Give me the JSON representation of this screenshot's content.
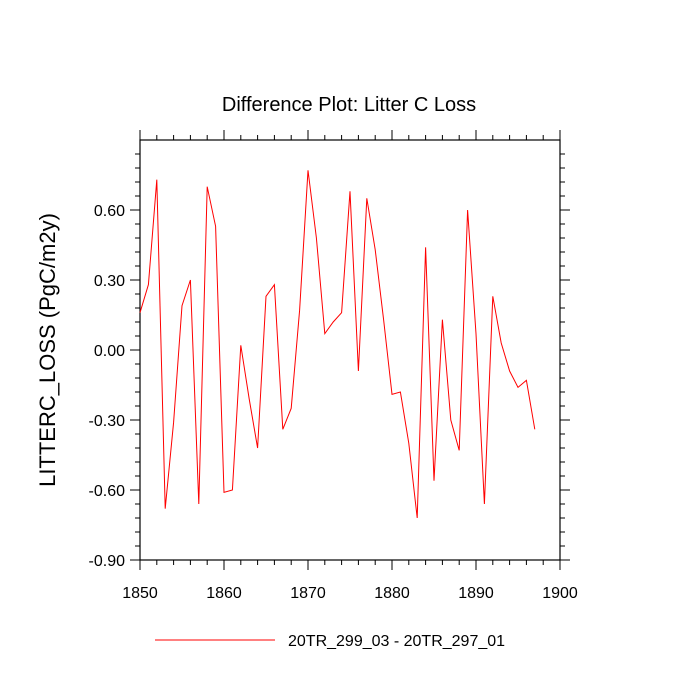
{
  "chart_data": {
    "type": "line",
    "title": "Difference Plot: Litter C Loss",
    "xlabel": "",
    "ylabel": "LITTERC_LOSS  (PgC/m2y)",
    "xlim": [
      1850,
      1900
    ],
    "ylim": [
      -0.9,
      0.9
    ],
    "xticks": [
      1850,
      1860,
      1870,
      1880,
      1890,
      1900
    ],
    "xtick_labels": [
      "1850",
      "1860",
      "1870",
      "1880",
      "1890",
      "1900"
    ],
    "yticks": [
      -0.9,
      -0.6,
      -0.3,
      0.0,
      0.3,
      0.6
    ],
    "ytick_labels": [
      "-0.90",
      "-0.60",
      "-0.30",
      "0.00",
      "0.30",
      "0.60"
    ],
    "grid": false,
    "legend_position": "bottom-center",
    "series": [
      {
        "name": "20TR_299_03 - 20TR_297_01",
        "color": "#ff0000",
        "x": [
          1850,
          1851,
          1852,
          1853,
          1854,
          1855,
          1856,
          1857,
          1858,
          1859,
          1860,
          1861,
          1862,
          1863,
          1864,
          1865,
          1866,
          1867,
          1868,
          1869,
          1870,
          1871,
          1872,
          1873,
          1874,
          1875,
          1876,
          1877,
          1878,
          1879,
          1880,
          1881,
          1882,
          1883,
          1884,
          1885,
          1886,
          1887,
          1888,
          1889,
          1890,
          1891,
          1892,
          1893,
          1894,
          1895,
          1896,
          1897
        ],
        "values": [
          0.16,
          0.28,
          0.73,
          -0.68,
          -0.31,
          0.19,
          0.3,
          -0.66,
          0.7,
          0.53,
          -0.61,
          -0.6,
          0.02,
          -0.21,
          -0.42,
          0.23,
          0.28,
          -0.34,
          -0.25,
          0.17,
          0.77,
          0.48,
          0.07,
          0.12,
          0.16,
          0.68,
          -0.09,
          0.65,
          0.43,
          0.13,
          -0.19,
          -0.18,
          -0.4,
          -0.72,
          0.44,
          -0.56,
          0.13,
          -0.3,
          -0.43,
          0.6,
          0.07,
          -0.66,
          0.23,
          0.03,
          -0.09,
          -0.16,
          -0.13,
          -0.34
        ]
      }
    ]
  }
}
